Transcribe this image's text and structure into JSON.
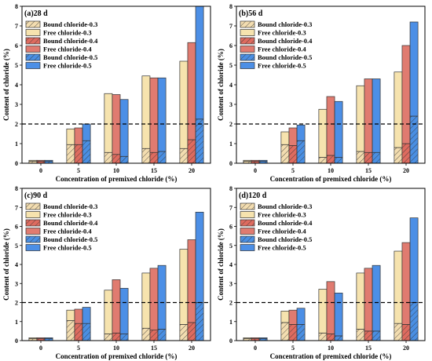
{
  "colors": {
    "bound_0.3": "#f3ddb0",
    "free_0.3": "#f6e3ae",
    "bound_0.4": "#de6b5f",
    "free_0.4": "#e07b70",
    "bound_0.5": "#4a8fe3",
    "free_0.5": "#4c8fe6",
    "reference_line": "#000000"
  },
  "legend_labels": [
    "Bound chloride-0.3",
    "Free chloride-0.3",
    "Bound chloride-0.4",
    "Free chloride-0.4",
    "Bound chloride-0.5",
    "Free chloride-0.5"
  ],
  "chart_data": [
    {
      "type": "bar",
      "title": "(a)28 d",
      "xlabel": "Concentration of premixed chloride (%)",
      "ylabel": "Content of chloride (%)",
      "categories": [
        "0",
        "5",
        "10",
        "15",
        "20"
      ],
      "ylim": [
        0,
        8
      ],
      "yticks": [
        0,
        1,
        2,
        3,
        4,
        5,
        6,
        7,
        8
      ],
      "reference_line_y": 2,
      "stacked": true,
      "series": [
        {
          "name": "Bound chloride-0.3",
          "stack": "0.3",
          "values": [
            0.1,
            0.95,
            0.55,
            0.75,
            0.75
          ]
        },
        {
          "name": "Free chloride-0.3",
          "stack": "0.3",
          "values": [
            0.05,
            0.8,
            3.0,
            3.7,
            4.45
          ]
        },
        {
          "name": "Bound chloride-0.4",
          "stack": "0.4",
          "values": [
            0.1,
            0.95,
            0.45,
            0.55,
            1.2
          ]
        },
        {
          "name": "Free chloride-0.4",
          "stack": "0.4",
          "values": [
            0.05,
            0.85,
            3.05,
            3.8,
            4.95
          ]
        },
        {
          "name": "Bound chloride-0.5",
          "stack": "0.5",
          "values": [
            0.1,
            1.15,
            0.35,
            0.6,
            2.25
          ]
        },
        {
          "name": "Free chloride-0.5",
          "stack": "0.5",
          "values": [
            0.05,
            0.85,
            2.9,
            3.75,
            5.75
          ]
        }
      ]
    },
    {
      "type": "bar",
      "title": "(b)56 d",
      "xlabel": "Concentration of premixed chloride (%)",
      "ylabel": "Content of chloride (%)",
      "categories": [
        "0",
        "5",
        "10",
        "15",
        "20"
      ],
      "ylim": [
        0,
        8
      ],
      "yticks": [
        0,
        1,
        2,
        3,
        4,
        5,
        6,
        7,
        8
      ],
      "reference_line_y": 2,
      "stacked": true,
      "series": [
        {
          "name": "Bound chloride-0.3",
          "stack": "0.3",
          "values": [
            0.1,
            0.95,
            0.3,
            0.6,
            0.8
          ]
        },
        {
          "name": "Free chloride-0.3",
          "stack": "0.3",
          "values": [
            0.05,
            0.65,
            2.45,
            3.35,
            3.85
          ]
        },
        {
          "name": "Bound chloride-0.4",
          "stack": "0.4",
          "values": [
            0.1,
            0.9,
            0.4,
            0.55,
            1.0
          ]
        },
        {
          "name": "Free chloride-0.4",
          "stack": "0.4",
          "values": [
            0.05,
            0.9,
            3.0,
            3.75,
            5.0
          ]
        },
        {
          "name": "Bound chloride-0.5",
          "stack": "0.5",
          "values": [
            0.1,
            1.15,
            0.3,
            0.55,
            2.4
          ]
        },
        {
          "name": "Free chloride-0.5",
          "stack": "0.5",
          "values": [
            0.05,
            0.8,
            2.85,
            3.75,
            4.8
          ]
        }
      ]
    },
    {
      "type": "bar",
      "title": "(c)90 d",
      "xlabel": "Concentration of premixed chloride (%)",
      "ylabel": "Content of chloride (%)",
      "categories": [
        "0",
        "5",
        "10",
        "15",
        "20"
      ],
      "ylim": [
        0,
        8
      ],
      "yticks": [
        0,
        1,
        2,
        3,
        4,
        5,
        6,
        7,
        8
      ],
      "reference_line_y": 2,
      "stacked": true,
      "series": [
        {
          "name": "Bound chloride-0.3",
          "stack": "0.3",
          "values": [
            0.1,
            1.05,
            0.35,
            0.65,
            0.85
          ]
        },
        {
          "name": "Free chloride-0.3",
          "stack": "0.3",
          "values": [
            0.05,
            0.55,
            2.3,
            2.9,
            3.95
          ]
        },
        {
          "name": "Bound chloride-0.4",
          "stack": "0.4",
          "values": [
            0.1,
            0.9,
            0.4,
            0.55,
            0.95
          ]
        },
        {
          "name": "Free chloride-0.4",
          "stack": "0.4",
          "values": [
            0.05,
            0.75,
            2.8,
            3.25,
            4.35
          ]
        },
        {
          "name": "Bound chloride-0.5",
          "stack": "0.5",
          "values": [
            0.1,
            0.9,
            0.35,
            0.6,
            2.0
          ]
        },
        {
          "name": "Free chloride-0.5",
          "stack": "0.5",
          "values": [
            0.05,
            0.85,
            2.4,
            3.35,
            4.75
          ]
        }
      ]
    },
    {
      "type": "bar",
      "title": "(d)120 d",
      "xlabel": "Concentration of premixed chloride (%)",
      "ylabel": "Content of chloride (%)",
      "categories": [
        "0",
        "5",
        "10",
        "15",
        "20"
      ],
      "ylim": [
        0,
        8
      ],
      "yticks": [
        0,
        1,
        2,
        3,
        4,
        5,
        6,
        7,
        8
      ],
      "reference_line_y": 2,
      "stacked": true,
      "series": [
        {
          "name": "Bound chloride-0.3",
          "stack": "0.3",
          "values": [
            0.1,
            0.95,
            0.4,
            0.6,
            0.9
          ]
        },
        {
          "name": "Free chloride-0.3",
          "stack": "0.3",
          "values": [
            0.05,
            0.6,
            2.3,
            2.95,
            3.8
          ]
        },
        {
          "name": "Bound chloride-0.4",
          "stack": "0.4",
          "values": [
            0.1,
            0.85,
            0.35,
            0.5,
            0.85
          ]
        },
        {
          "name": "Free chloride-0.4",
          "stack": "0.4",
          "values": [
            0.05,
            0.75,
            2.75,
            3.3,
            4.3
          ]
        },
        {
          "name": "Bound chloride-0.5",
          "stack": "0.5",
          "values": [
            0.1,
            0.85,
            0.25,
            0.5,
            2.0
          ]
        },
        {
          "name": "Free chloride-0.5",
          "stack": "0.5",
          "values": [
            0.05,
            0.85,
            2.25,
            3.45,
            4.45
          ]
        }
      ]
    }
  ]
}
